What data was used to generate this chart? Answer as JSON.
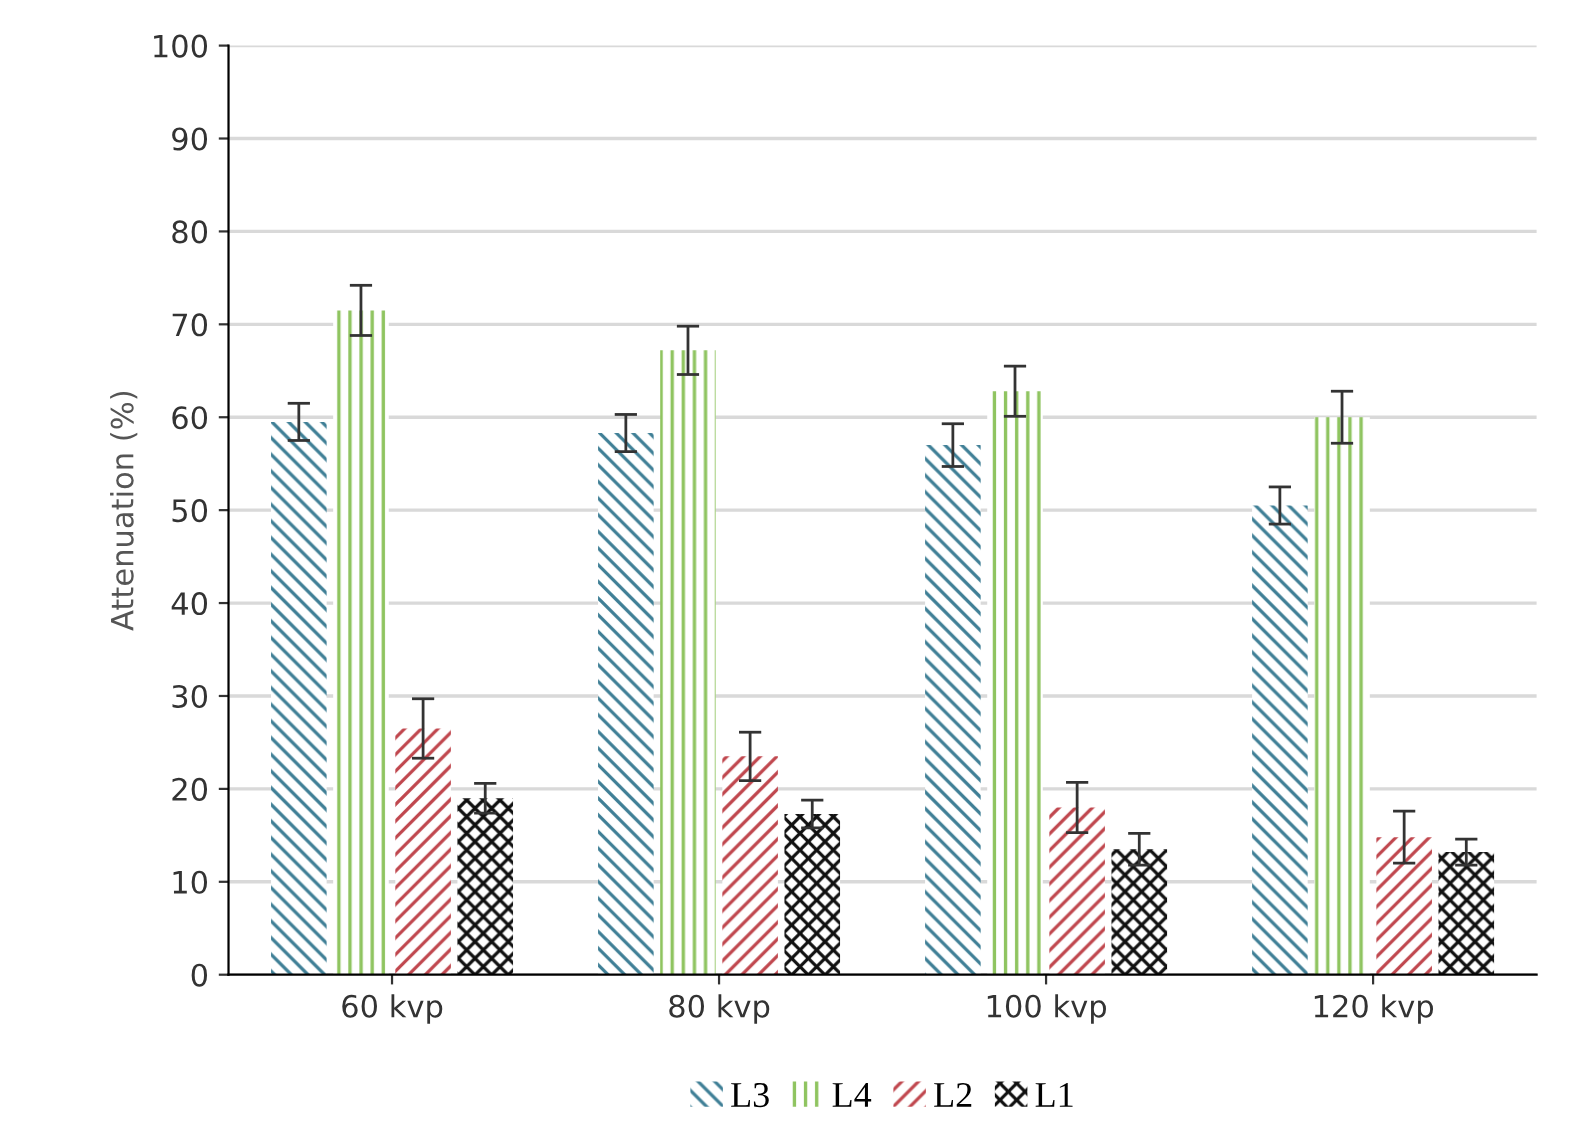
{
  "chart_data": {
    "type": "bar",
    "ylabel": "Attenuation (%)",
    "categories": [
      "60 kvp",
      "80 kvp",
      "100 kvp",
      "120 kvp"
    ],
    "series": [
      {
        "name": "L3",
        "color": "#3f7f96",
        "values": [
          59.5,
          58.3,
          57,
          50.5
        ],
        "errors": [
          2,
          2,
          2.3,
          2
        ]
      },
      {
        "name": "L4",
        "color": "#8fc460",
        "values": [
          71.5,
          67.2,
          62.8,
          60
        ],
        "errors": [
          2.7,
          2.6,
          2.7,
          2.8
        ]
      },
      {
        "name": "L2",
        "color": "#c0474e",
        "values": [
          26.5,
          23.5,
          18,
          14.8
        ],
        "errors": [
          3.2,
          2.6,
          2.7,
          2.8
        ]
      },
      {
        "name": "L1",
        "color": "#111111",
        "values": [
          19,
          17.3,
          13.5,
          13.2
        ],
        "errors": [
          1.6,
          1.5,
          1.7,
          1.4
        ]
      }
    ],
    "ylim": [
      0,
      100
    ],
    "yticks": [
      0,
      10,
      20,
      30,
      40,
      50,
      60,
      70,
      80,
      90,
      100
    ],
    "grid": "y",
    "legend": "bottom"
  }
}
